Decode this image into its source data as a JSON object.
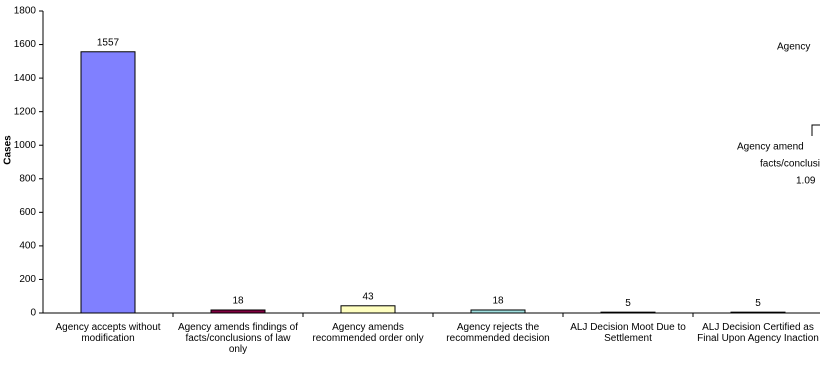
{
  "chart_data": {
    "type": "bar",
    "y_label": "Cases",
    "categories": [
      "Agency accepts without modification",
      "Agency amends findings of facts/conclusions of law only",
      "Agency amends recommended order only",
      "Agency rejects the recommended decision",
      "ALJ Decision Moot Due to Settlement",
      "ALJ Decision Certified as Final Upon Agency Inaction"
    ],
    "values": [
      1557,
      18,
      43,
      18,
      5,
      5
    ],
    "colors": [
      "#8080ff",
      "#800040",
      "#ffffc0",
      "#a0e0e0",
      "#202020",
      "#202020"
    ],
    "ylim": [
      0,
      1800
    ],
    "yticks": [
      0,
      200,
      400,
      600,
      800,
      1000,
      1200,
      1400,
      1600,
      1800
    ],
    "annotations": [
      "Agency",
      "Agency amend",
      "facts/conclusion",
      "1.09"
    ]
  }
}
